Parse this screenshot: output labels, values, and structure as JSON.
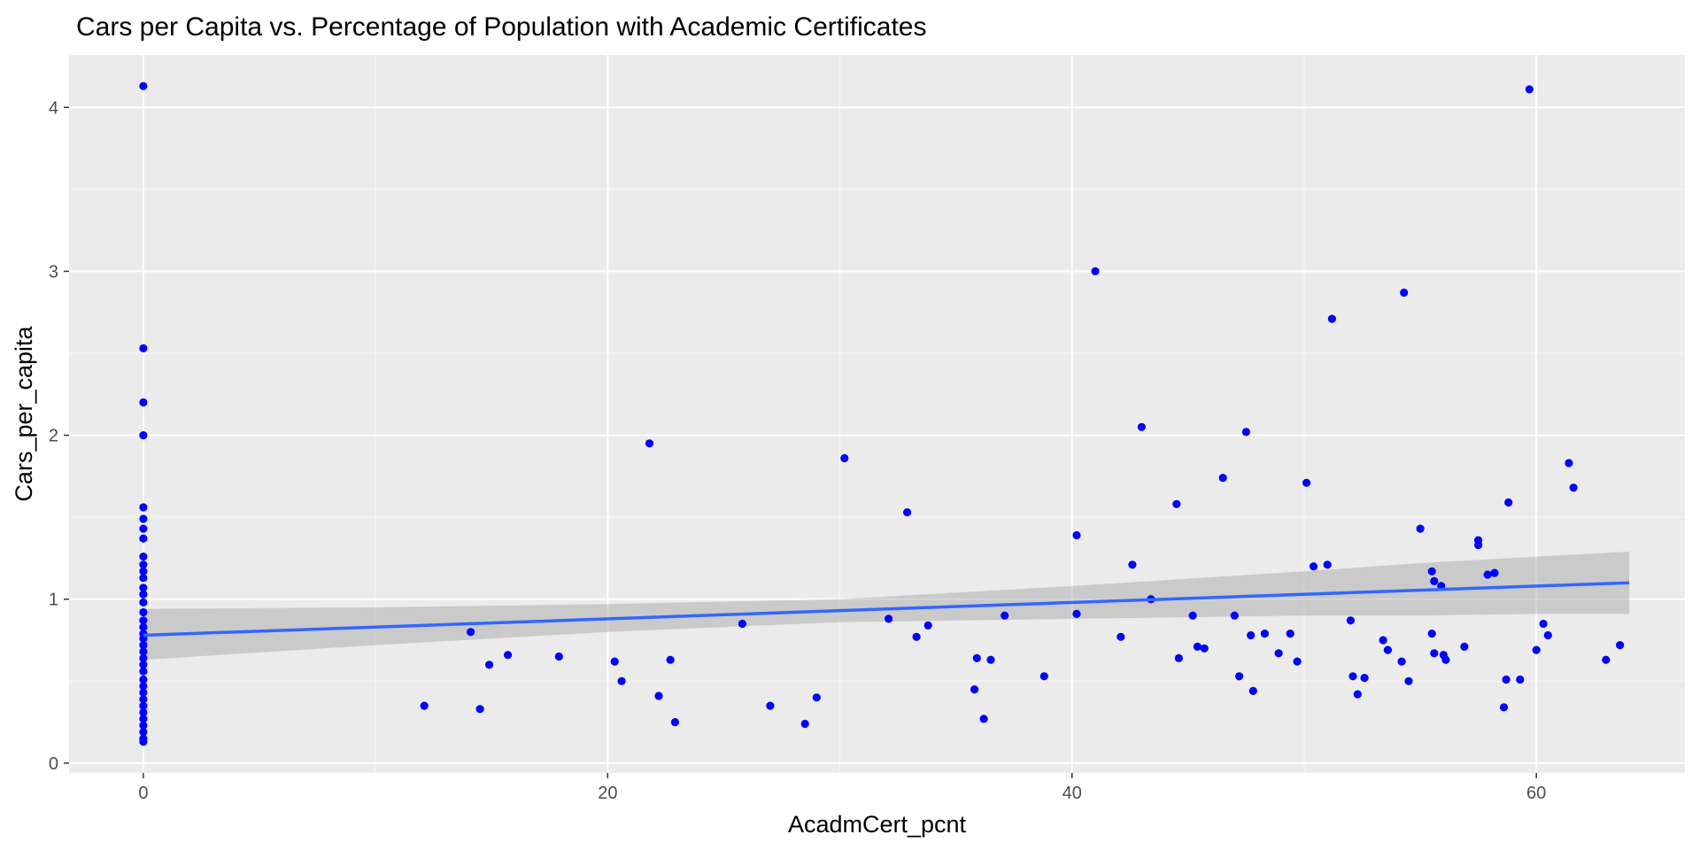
{
  "chart_data": {
    "type": "scatter",
    "title": "Cars per Capita vs. Percentage of Population with Academic Certificates",
    "xlabel": "AcadmCert_pcnt",
    "ylabel": "Cars_per_capita",
    "xlim": [
      -3.2,
      66.4
    ],
    "ylim": [
      -0.06,
      4.32
    ],
    "xticks": [
      0,
      20,
      40,
      60
    ],
    "yticks": [
      0,
      1,
      2,
      3,
      4
    ],
    "grid": true,
    "background": "#ebebeb",
    "point_color": "#0000ff",
    "line_color": "#3366ff",
    "ribbon_color": "#999999",
    "points": [
      [
        0,
        4.13
      ],
      [
        0,
        2.53
      ],
      [
        0,
        2.2
      ],
      [
        0,
        2.0
      ],
      [
        0,
        1.56
      ],
      [
        0,
        1.49
      ],
      [
        0,
        1.43
      ],
      [
        0,
        1.37
      ],
      [
        0,
        1.26
      ],
      [
        0,
        1.21
      ],
      [
        0,
        1.17
      ],
      [
        0,
        1.13
      ],
      [
        0,
        1.07
      ],
      [
        0,
        1.03
      ],
      [
        0,
        0.98
      ],
      [
        0,
        0.92
      ],
      [
        0,
        0.87
      ],
      [
        0,
        0.83
      ],
      [
        0,
        0.79
      ],
      [
        0,
        0.76
      ],
      [
        0,
        0.72
      ],
      [
        0,
        0.68
      ],
      [
        0,
        0.64
      ],
      [
        0,
        0.6
      ],
      [
        0,
        0.56
      ],
      [
        0,
        0.51
      ],
      [
        0,
        0.47
      ],
      [
        0,
        0.43
      ],
      [
        0,
        0.39
      ],
      [
        0,
        0.35
      ],
      [
        0,
        0.31
      ],
      [
        0,
        0.27
      ],
      [
        0,
        0.23
      ],
      [
        0,
        0.19
      ],
      [
        0,
        0.15
      ],
      [
        0,
        0.13
      ],
      [
        12.1,
        0.35
      ],
      [
        14.1,
        0.8
      ],
      [
        14.5,
        0.33
      ],
      [
        14.9,
        0.6
      ],
      [
        15.7,
        0.66
      ],
      [
        17.9,
        0.65
      ],
      [
        20.3,
        0.62
      ],
      [
        20.6,
        0.5
      ],
      [
        21.8,
        1.95
      ],
      [
        22.2,
        0.41
      ],
      [
        22.7,
        0.63
      ],
      [
        22.9,
        0.25
      ],
      [
        25.8,
        0.85
      ],
      [
        27.0,
        0.35
      ],
      [
        28.5,
        0.24
      ],
      [
        29.0,
        0.4
      ],
      [
        30.2,
        1.86
      ],
      [
        32.1,
        0.88
      ],
      [
        32.9,
        1.53
      ],
      [
        33.3,
        0.77
      ],
      [
        33.8,
        0.84
      ],
      [
        35.8,
        0.45
      ],
      [
        35.9,
        0.64
      ],
      [
        36.2,
        0.27
      ],
      [
        36.5,
        0.63
      ],
      [
        37.1,
        0.9
      ],
      [
        38.8,
        0.53
      ],
      [
        40.2,
        0.91
      ],
      [
        40.2,
        1.39
      ],
      [
        41.0,
        3.0
      ],
      [
        42.1,
        0.77
      ],
      [
        42.6,
        1.21
      ],
      [
        43.0,
        2.05
      ],
      [
        43.4,
        1.0
      ],
      [
        44.5,
        1.58
      ],
      [
        44.6,
        0.64
      ],
      [
        45.2,
        0.9
      ],
      [
        45.4,
        0.71
      ],
      [
        45.7,
        0.7
      ],
      [
        46.5,
        1.74
      ],
      [
        47.0,
        0.9
      ],
      [
        47.2,
        0.53
      ],
      [
        47.5,
        2.02
      ],
      [
        47.7,
        0.78
      ],
      [
        47.8,
        0.44
      ],
      [
        48.3,
        0.79
      ],
      [
        48.9,
        0.67
      ],
      [
        49.4,
        0.79
      ],
      [
        49.7,
        0.62
      ],
      [
        50.1,
        1.71
      ],
      [
        50.4,
        1.2
      ],
      [
        51.0,
        1.21
      ],
      [
        51.2,
        2.71
      ],
      [
        52.0,
        0.87
      ],
      [
        52.1,
        0.53
      ],
      [
        52.3,
        0.42
      ],
      [
        52.6,
        0.52
      ],
      [
        53.4,
        0.75
      ],
      [
        53.6,
        0.69
      ],
      [
        54.2,
        0.62
      ],
      [
        54.3,
        2.87
      ],
      [
        54.5,
        0.5
      ],
      [
        55.0,
        1.43
      ],
      [
        55.5,
        0.79
      ],
      [
        55.5,
        1.17
      ],
      [
        55.6,
        1.11
      ],
      [
        55.6,
        0.67
      ],
      [
        55.9,
        1.08
      ],
      [
        56.0,
        0.66
      ],
      [
        56.1,
        0.63
      ],
      [
        56.9,
        0.71
      ],
      [
        57.5,
        1.36
      ],
      [
        57.5,
        1.33
      ],
      [
        57.9,
        1.15
      ],
      [
        58.2,
        1.16
      ],
      [
        58.6,
        0.34
      ],
      [
        58.7,
        0.51
      ],
      [
        58.8,
        1.59
      ],
      [
        59.3,
        0.51
      ],
      [
        59.7,
        4.11
      ],
      [
        60.0,
        0.69
      ],
      [
        60.3,
        0.85
      ],
      [
        60.5,
        0.78
      ],
      [
        61.4,
        1.83
      ],
      [
        61.6,
        1.68
      ],
      [
        63.0,
        0.63
      ],
      [
        63.6,
        0.72
      ]
    ],
    "fit_line": {
      "x": [
        0,
        64
      ],
      "y": [
        0.78,
        1.1
      ]
    },
    "confidence_band": {
      "x": [
        0,
        10,
        20,
        30,
        40,
        50,
        55,
        60,
        64
      ],
      "lower": [
        0.63,
        0.72,
        0.8,
        0.86,
        0.88,
        0.9,
        0.9,
        0.91,
        0.91
      ],
      "upper": [
        0.94,
        0.95,
        0.97,
        1.0,
        1.08,
        1.17,
        1.22,
        1.26,
        1.29
      ]
    }
  }
}
